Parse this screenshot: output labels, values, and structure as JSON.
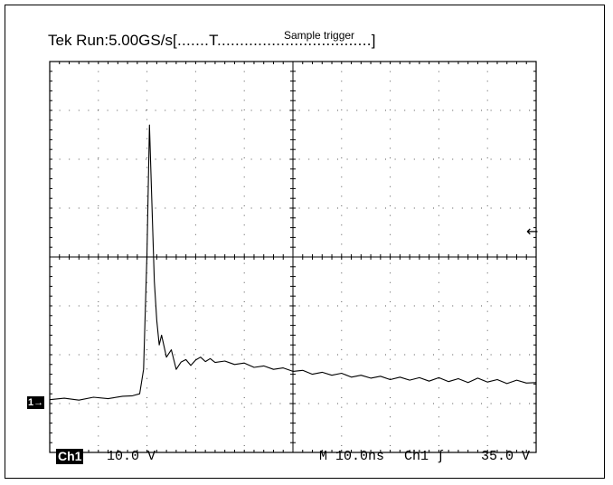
{
  "header": {
    "status_prefix": "Tek Run:",
    "sample_rate": "5.00GS/s",
    "trigger_bar_left": "[.......T",
    "trigger_bar_dots": "..................................",
    "trigger_bar_right": "]",
    "trigger_label": "Sample trigger"
  },
  "footer": {
    "channel_badge": "Ch1",
    "volts_per_div": "10.0 V",
    "timebase": "M 10.0ns",
    "trigger_source": "Ch1",
    "trigger_slope_icon": "rising-edge-icon",
    "trigger_level": "35.0 V"
  },
  "markers": {
    "channel_ground": "1",
    "channel_ground_icon": "arrow-right-icon",
    "trigger_level_icon": "arrow-left-icon"
  },
  "chart_data": {
    "type": "line",
    "title": "",
    "xlabel": "",
    "ylabel": "",
    "grid": true,
    "grid_divisions": {
      "x": 10,
      "y": 8
    },
    "xlim": [
      0,
      100
    ],
    "ylim": [
      -11,
      69
    ],
    "x_units": "ns",
    "y_units": "V",
    "series": [
      {
        "name": "",
        "color": "#000000",
        "x": [
          0,
          3,
          6,
          9,
          12,
          15,
          17,
          18.5,
          19.3,
          20.0,
          20.5,
          21.0,
          21.5,
          22.0,
          22.5,
          23.0,
          24.0,
          25.0,
          26.0,
          27.0,
          28.0,
          29.0,
          30.0,
          31.0,
          32.0,
          33.0,
          34.0,
          36.0,
          38.0,
          40.0,
          42.0,
          44.0,
          46.0,
          48.0,
          50.0,
          52.0,
          54.0,
          56.0,
          58.0,
          60.0,
          62.0,
          64.0,
          66.0,
          68.0,
          70.0,
          72.0,
          74.0,
          76.0,
          78.0,
          80.0,
          82.0,
          84.0,
          86.0,
          88.0,
          90.0,
          92.0,
          94.0,
          96.0,
          98.0,
          100.0
        ],
        "values": [
          -0.2,
          0.1,
          -0.3,
          0.3,
          0.0,
          0.5,
          0.6,
          1.0,
          6.0,
          30.0,
          56.0,
          40.0,
          24.0,
          16.0,
          11.0,
          13.0,
          8.5,
          10.0,
          6.0,
          7.5,
          8.0,
          6.8,
          7.9,
          8.5,
          7.6,
          8.2,
          7.4,
          7.7,
          7.0,
          7.3,
          6.4,
          6.7,
          6.0,
          6.3,
          5.6,
          5.8,
          5.0,
          5.4,
          4.8,
          5.2,
          4.4,
          4.8,
          4.2,
          4.6,
          3.9,
          4.4,
          3.8,
          4.3,
          3.6,
          4.3,
          3.5,
          4.1,
          3.3,
          4.2,
          3.4,
          3.9,
          3.1,
          3.8,
          3.2,
          3.3
        ]
      }
    ]
  }
}
